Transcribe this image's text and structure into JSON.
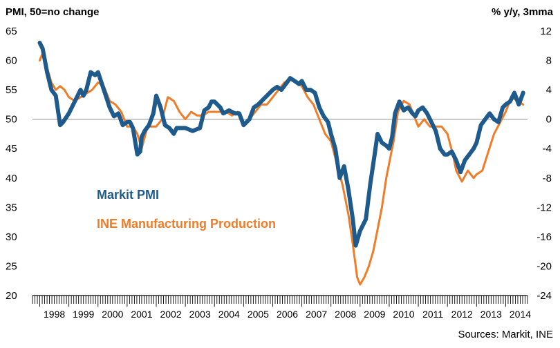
{
  "chart_data": {
    "type": "line",
    "left_axis_title": "PMI, 50=no change",
    "right_axis_title": "% y/y, 3mma",
    "source": "Sources: Markit, INE",
    "ylim_left": [
      20,
      65
    ],
    "yticks_left": [
      "65",
      "60",
      "55",
      "50",
      "45",
      "40",
      "35",
      "30",
      "25",
      "20"
    ],
    "ylim_right": [
      -24,
      12
    ],
    "yticks_right": [
      "12",
      "8",
      "4",
      "0",
      "-4",
      "-8",
      "-12",
      "-16",
      "-20",
      "-24"
    ],
    "xlim": [
      1997.75,
      2014.75
    ],
    "year_labels": [
      "1998",
      "1999",
      "2000",
      "2001",
      "2002",
      "2003",
      "2004",
      "2005",
      "2006",
      "2007",
      "2008",
      "2009",
      "2010",
      "2011",
      "2012",
      "2013",
      "2014"
    ],
    "reference_line": 50,
    "colors": {
      "pmi": "#1f5a8c",
      "production": "#f07c27",
      "reference": "#9a9a9a"
    },
    "series": [
      {
        "name": "Markit PMI",
        "axis": "left",
        "x": [
          1998.0,
          1998.1,
          1998.25,
          1998.4,
          1998.55,
          1998.7,
          1998.8,
          1999.0,
          1999.2,
          1999.4,
          1999.5,
          1999.6,
          1999.75,
          1999.9,
          2000.0,
          2000.2,
          2000.4,
          2000.55,
          2000.7,
          2000.85,
          2001.0,
          2001.1,
          2001.2,
          2001.35,
          2001.45,
          2001.5,
          2001.6,
          2001.75,
          2001.9,
          2002.0,
          2002.15,
          2002.3,
          2002.45,
          2002.6,
          2002.7,
          2002.85,
          2003.0,
          2003.25,
          2003.5,
          2003.65,
          2003.8,
          2003.9,
          2004.0,
          2004.2,
          2004.3,
          2004.5,
          2004.7,
          2004.85,
          2005.0,
          2005.2,
          2005.35,
          2005.5,
          2005.7,
          2005.9,
          2006.0,
          2006.15,
          2006.3,
          2006.45,
          2006.6,
          2006.75,
          2006.9,
          2007.0,
          2007.15,
          2007.3,
          2007.45,
          2007.6,
          2007.75,
          2007.9,
          2008.0,
          2008.15,
          2008.3,
          2008.45,
          2008.6,
          2008.75,
          2008.85,
          2009.0,
          2009.2,
          2009.35,
          2009.5,
          2009.6,
          2009.75,
          2009.9,
          2010.0,
          2010.1,
          2010.2,
          2010.35,
          2010.5,
          2010.65,
          2010.8,
          2010.9,
          2011.0,
          2011.15,
          2011.3,
          2011.45,
          2011.6,
          2011.75,
          2011.9,
          2012.0,
          2012.15,
          2012.3,
          2012.45,
          2012.6,
          2012.75,
          2012.9,
          2013.0,
          2013.15,
          2013.3,
          2013.45,
          2013.6,
          2013.75,
          2013.9,
          2014.0,
          2014.15,
          2014.3,
          2014.45,
          2014.6
        ],
        "values": [
          63,
          62,
          58,
          55,
          54,
          49,
          49.5,
          51,
          53,
          55,
          54,
          55,
          58,
          57.5,
          58,
          55,
          52,
          50.5,
          51,
          49,
          49.5,
          49.5,
          48.5,
          44,
          44.5,
          47,
          48,
          49,
          51,
          54,
          52,
          49,
          48.5,
          47.5,
          48.5,
          48.5,
          48.5,
          48,
          48.5,
          51.5,
          52,
          53,
          53,
          52,
          51,
          51.5,
          51,
          51,
          49,
          50,
          52,
          52.5,
          53.5,
          54.5,
          55,
          55.5,
          55,
          56,
          57,
          56.5,
          56,
          56.5,
          55,
          55,
          54.5,
          52,
          50.5,
          49.5,
          47.5,
          45,
          40,
          42,
          38,
          33,
          28.5,
          31,
          33,
          39,
          44,
          47.5,
          46,
          45.5,
          45,
          47,
          51,
          53,
          51.5,
          52,
          51,
          50.5,
          51.5,
          52,
          51,
          49.5,
          48,
          45,
          44,
          44,
          44.5,
          43,
          41,
          43,
          44,
          45,
          46,
          49,
          50,
          51,
          50,
          49.5,
          52,
          52.5,
          53,
          54.5,
          52.5,
          54.5
        ]
      },
      {
        "name": "INE Manufacturing Production",
        "axis": "right",
        "x": [
          1998.0,
          1998.1,
          1998.25,
          1998.4,
          1998.55,
          1998.7,
          1998.85,
          1999.0,
          1999.2,
          1999.4,
          1999.6,
          1999.8,
          2000.0,
          2000.2,
          2000.4,
          2000.6,
          2000.8,
          2001.0,
          2001.2,
          2001.35,
          2001.5,
          2001.7,
          2001.9,
          2002.0,
          2002.2,
          2002.4,
          2002.6,
          2002.8,
          2003.0,
          2003.2,
          2003.4,
          2003.6,
          2003.8,
          2004.0,
          2004.2,
          2004.4,
          2004.6,
          2004.8,
          2005.0,
          2005.2,
          2005.4,
          2005.6,
          2005.8,
          2006.0,
          2006.2,
          2006.4,
          2006.6,
          2006.8,
          2007.0,
          2007.2,
          2007.4,
          2007.6,
          2007.8,
          2008.0,
          2008.2,
          2008.4,
          2008.6,
          2008.75,
          2008.9,
          2009.0,
          2009.15,
          2009.3,
          2009.45,
          2009.6,
          2009.75,
          2009.9,
          2010.0,
          2010.15,
          2010.3,
          2010.5,
          2010.7,
          2010.9,
          2011.0,
          2011.2,
          2011.4,
          2011.6,
          2011.8,
          2012.0,
          2012.2,
          2012.3,
          2012.5,
          2012.7,
          2012.9,
          2013.0,
          2013.2,
          2013.4,
          2013.6,
          2013.8,
          2014.0,
          2014.2,
          2014.4,
          2014.6
        ],
        "values": [
          8,
          9,
          7,
          5,
          4,
          4.5,
          4,
          3,
          2.5,
          3,
          3.5,
          4,
          5,
          4.5,
          2.5,
          2,
          1,
          -1,
          -1,
          -2,
          -4,
          -1,
          -1,
          -1,
          0,
          3,
          2.5,
          1,
          0,
          1,
          0.5,
          0.5,
          1,
          1,
          1,
          1,
          0.5,
          1,
          -0.5,
          0,
          1,
          2,
          2,
          3,
          4,
          5,
          5.5,
          5,
          4.5,
          3,
          2,
          0,
          -2,
          -3,
          -6,
          -9,
          -13,
          -17,
          -21.5,
          -22.5,
          -21.5,
          -20,
          -18,
          -15,
          -12,
          -8,
          -6,
          -3,
          1,
          2.5,
          2,
          0,
          -1,
          0,
          -1,
          -1,
          -1,
          -2,
          -5,
          -7,
          -8.5,
          -7,
          -8,
          -7.5,
          -7,
          -4.5,
          -2,
          -0.5,
          1,
          3,
          2.5,
          2
        ]
      }
    ]
  }
}
